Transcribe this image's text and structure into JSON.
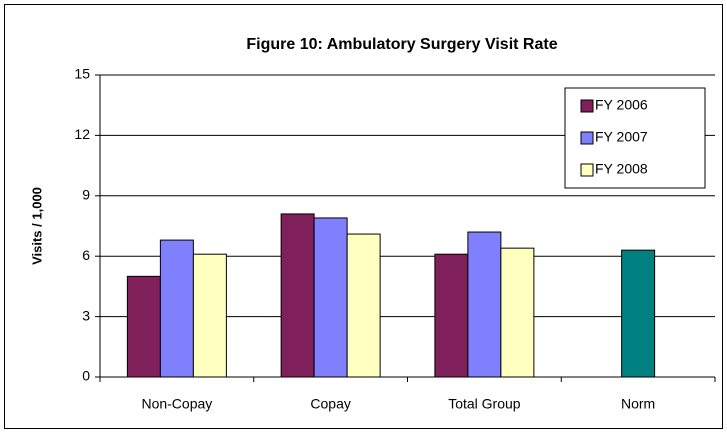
{
  "chart_data": {
    "type": "bar",
    "title": "Figure 10:  Ambulatory Surgery Visit Rate",
    "y_label": "Visits / 1,000",
    "categories": [
      "Non-Copay",
      "Copay",
      "Total Group",
      "Norm"
    ],
    "series": [
      {
        "name": "FY 2006",
        "color": "#80205a",
        "values": [
          5.0,
          8.1,
          6.1,
          null
        ]
      },
      {
        "name": "FY 2007",
        "color": "#8080ff",
        "values": [
          6.8,
          7.9,
          7.2,
          null
        ]
      },
      {
        "name": "FY 2008",
        "color": "#ffffc0",
        "values": [
          6.1,
          7.1,
          6.4,
          null
        ]
      },
      {
        "color": "#008080",
        "values": [
          null,
          null,
          null,
          6.3
        ]
      }
    ],
    "ylim": [
      0,
      15
    ],
    "yticks": [
      0,
      3,
      6,
      9,
      12,
      15
    ],
    "grid": true,
    "legend": "upper right"
  }
}
